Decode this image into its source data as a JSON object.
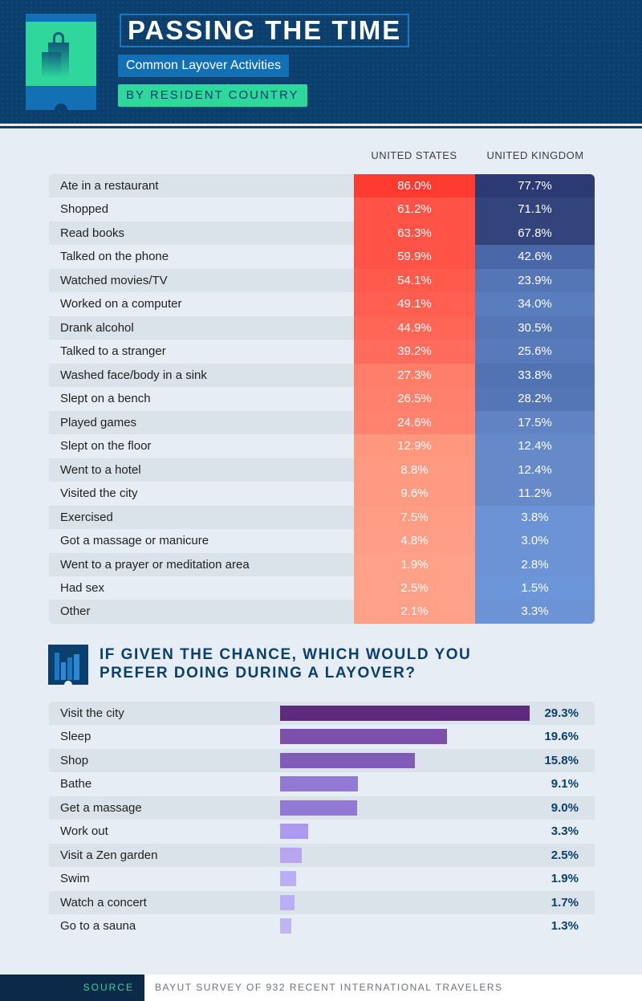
{
  "header": {
    "title": "PASSING THE TIME",
    "subtitle": "Common Layover Activities",
    "tag": "BY RESIDENT COUNTRY",
    "icon": "shopping-bags-tablet-icon"
  },
  "colors": {
    "header_bg": "#0b3f6e",
    "accent_green": "#2fd79c",
    "us": "#ff3a30",
    "uk": "#2b3a72",
    "bar": "#5e2a7e"
  },
  "chart_data": [
    {
      "type": "table",
      "columns": [
        "UNITED STATES",
        "UNITED KINGDOM"
      ],
      "rows": [
        {
          "label": "Ate in a restaurant",
          "us": "86.0%",
          "uk": "77.7%",
          "us_color": "#ff3a30",
          "uk_color": "#2b3a72"
        },
        {
          "label": "Shopped",
          "us": "61.2%",
          "uk": "71.1%",
          "us_color": "#ff5347",
          "uk_color": "#33447d"
        },
        {
          "label": "Read books",
          "us": "63.3%",
          "uk": "67.8%",
          "us_color": "#ff5347",
          "uk_color": "#33447d"
        },
        {
          "label": "Talked on the phone",
          "us": "59.9%",
          "uk": "42.6%",
          "us_color": "#ff5347",
          "uk_color": "#4a67a8"
        },
        {
          "label": "Watched movies/TV",
          "us": "54.1%",
          "uk": "23.9%",
          "us_color": "#ff5a4c",
          "uk_color": "#5576b5"
        },
        {
          "label": "Worked on a computer",
          "us": "49.1%",
          "uk": "34.0%",
          "us_color": "#ff5e50",
          "uk_color": "#5a7dbd"
        },
        {
          "label": "Drank alcohol",
          "us": "44.9%",
          "uk": "30.5%",
          "us_color": "#ff6656",
          "uk_color": "#5577b5"
        },
        {
          "label": "Talked to a stranger",
          "us": "39.2%",
          "uk": "25.6%",
          "us_color": "#ff6c5c",
          "uk_color": "#5879ba"
        },
        {
          "label": "Washed face/body in a sink",
          "us": "27.3%",
          "uk": "33.8%",
          "us_color": "#ff7e6a",
          "uk_color": "#5173b1"
        },
        {
          "label": "Slept on a bench",
          "us": "26.5%",
          "uk": "28.2%",
          "us_color": "#ff806c",
          "uk_color": "#5576b5"
        },
        {
          "label": "Played games",
          "us": "24.6%",
          "uk": "17.5%",
          "us_color": "#ff836f",
          "uk_color": "#6183c4"
        },
        {
          "label": "Slept on the floor",
          "us": "12.9%",
          "uk": "12.4%",
          "us_color": "#ff967e",
          "uk_color": "#6689c8"
        },
        {
          "label": "Went to a hotel",
          "us": "8.8%",
          "uk": "12.4%",
          "us_color": "#ff9a82",
          "uk_color": "#6689c8"
        },
        {
          "label": "Visited the city",
          "us": "9.6%",
          "uk": "11.2%",
          "us_color": "#ff9a82",
          "uk_color": "#6689c8"
        },
        {
          "label": "Exercised",
          "us": "7.5%",
          "uk": "3.8%",
          "us_color": "#ff9c84",
          "uk_color": "#6b93d6"
        },
        {
          "label": "Got a massage or manicure",
          "us": "4.8%",
          "uk": "3.0%",
          "us_color": "#ff9e86",
          "uk_color": "#6b93d6"
        },
        {
          "label": "Went to a prayer or meditation area",
          "us": "1.9%",
          "uk": "2.8%",
          "us_color": "#ffa088",
          "uk_color": "#6b93d6"
        },
        {
          "label": "Had sex",
          "us": "2.5%",
          "uk": "1.5%",
          "us_color": "#ffa088",
          "uk_color": "#6b96d9"
        },
        {
          "label": "Other",
          "us": "2.1%",
          "uk": "3.3%",
          "us_color": "#ffa088",
          "uk_color": "#6b93d6"
        }
      ]
    },
    {
      "type": "bar",
      "title": "IF GIVEN THE CHANCE, WHICH WOULD YOU PREFER DOING DURING A LAYOVER?",
      "title_lines": [
        "IF GIVEN THE CHANCE, WHICH WOULD YOU",
        "PREFER DOING DURING A LAYOVER?"
      ],
      "icon": "city-skyline-icon",
      "categories": [
        "Visit the city",
        "Sleep",
        "Shop",
        "Bathe",
        "Get a massage",
        "Work out",
        "Visit a Zen garden",
        "Swim",
        "Watch a concert",
        "Go to a sauna"
      ],
      "values": [
        29.3,
        19.6,
        15.8,
        9.1,
        9.0,
        3.3,
        2.5,
        1.9,
        1.7,
        1.3
      ],
      "labels": [
        "29.3%",
        "19.6%",
        "15.8%",
        "9.1%",
        "9.0%",
        "3.3%",
        "2.5%",
        "1.9%",
        "1.7%",
        "1.3%"
      ],
      "colors": [
        "#5e2a7e",
        "#7d50ab",
        "#7f5cb5",
        "#9279d6",
        "#9279d6",
        "#ad9af0",
        "#b7a5ef",
        "#bcaef4",
        "#bcaef4",
        "#c0b3f6"
      ]
    }
  ],
  "footer": {
    "source_label": "SOURCE",
    "source_text": "BAYUT SURVEY OF 932 RECENT INTERNATIONAL TRAVELERS"
  }
}
